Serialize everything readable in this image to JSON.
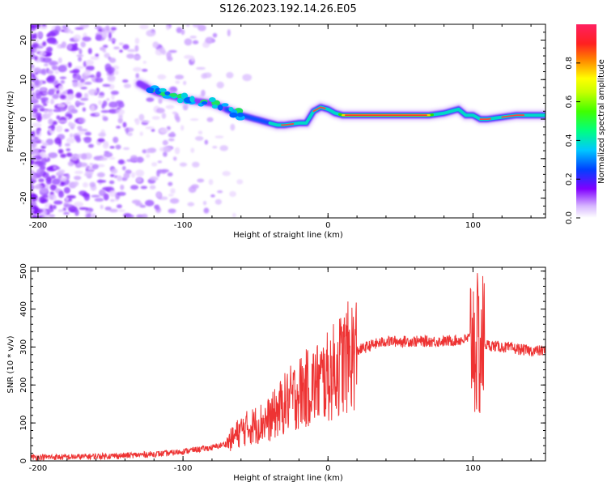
{
  "figure": {
    "title": "S126.2023.192.14.26.E05"
  },
  "chart_data": [
    {
      "type": "heatmap",
      "xlabel": "Height of straight line (km)",
      "ylabel": "Frequency (Hz)",
      "xlim": [
        -205,
        150
      ],
      "ylim": [
        -25,
        24
      ],
      "xticks": [
        -200,
        -100,
        0,
        100
      ],
      "yticks": [
        -20,
        -10,
        0,
        10,
        20
      ],
      "colorbar": {
        "label": "Normalized spectral amplitude",
        "range": [
          0,
          1
        ],
        "ticks": [
          0.0,
          0.2,
          0.4,
          0.6,
          0.8
        ],
        "colormap": "rainbow (white-violet-blue-cyan-green-yellow-red)"
      },
      "ridge_frequency": {
        "x": [
          -130,
          -120,
          -110,
          -100,
          -90,
          -80,
          -70,
          -60,
          -50,
          -40,
          -35,
          -30,
          -20,
          -15,
          -10,
          -5,
          0,
          5,
          10,
          20,
          40,
          60,
          70,
          80,
          85,
          90,
          95,
          100,
          105,
          110,
          120,
          130,
          150
        ],
        "freq_hz": [
          9,
          7,
          6,
          5,
          4.5,
          4,
          2.5,
          1,
          0,
          -1,
          -1.5,
          -1.5,
          -1,
          -1,
          2,
          3,
          2.5,
          1.5,
          1,
          1,
          1,
          1,
          1,
          1.5,
          2,
          2.5,
          1,
          1,
          0,
          0,
          0.5,
          1,
          1
        ]
      }
    },
    {
      "type": "line",
      "xlabel": "Height of straight line (km)",
      "ylabel": "SNR (10 * v/v)",
      "xlim": [
        -205,
        150
      ],
      "ylim": [
        0,
        510
      ],
      "xticks": [
        -200,
        -100,
        0,
        100
      ],
      "yticks": [
        0,
        100,
        200,
        300,
        400,
        500
      ],
      "color": "#ee3333",
      "series": [
        {
          "x": [
            -205,
            -180,
            -160,
            -140,
            -120,
            -110,
            -100,
            -90,
            -80,
            -70,
            -60,
            -50,
            -40,
            -30,
            -20,
            -10,
            0,
            10,
            20,
            30,
            40,
            50,
            60,
            70,
            80,
            90,
            95,
            100,
            102,
            104,
            106,
            110,
            120,
            130,
            140,
            150
          ],
          "y": [
            10,
            10,
            12,
            14,
            18,
            20,
            25,
            30,
            35,
            45,
            80,
            95,
            110,
            150,
            180,
            200,
            220,
            260,
            290,
            305,
            315,
            315,
            315,
            315,
            315,
            318,
            320,
            330,
            300,
            290,
            310,
            305,
            300,
            295,
            290,
            290
          ]
        }
      ]
    }
  ]
}
